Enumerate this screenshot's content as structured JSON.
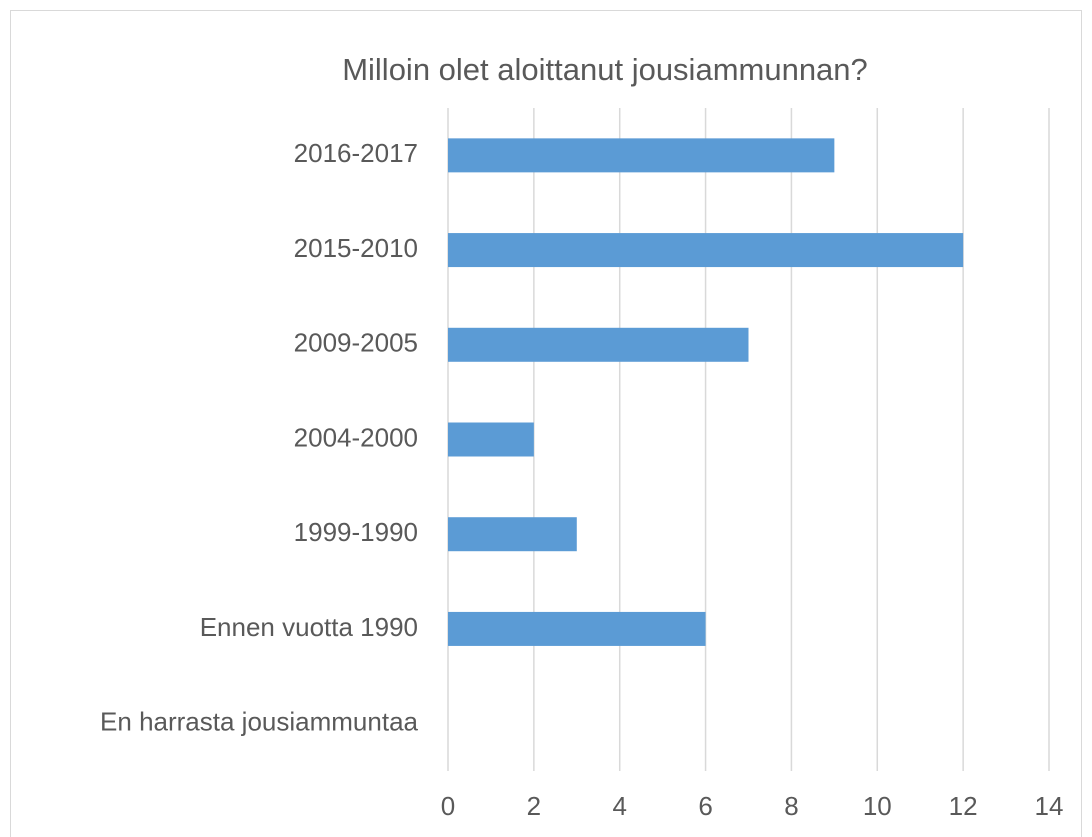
{
  "chart_data": {
    "type": "bar",
    "orientation": "horizontal",
    "title": "Milloin olet aloittanut jousiammunnan?",
    "categories": [
      "2016-2017",
      "2015-2010",
      "2009-2005",
      "2004-2000",
      "1999-1990",
      "Ennen vuotta 1990",
      "En harrasta jousiammuntaa"
    ],
    "values": [
      9,
      12,
      7,
      2,
      3,
      6,
      0
    ],
    "color": "#5b9bd5",
    "xlim": [
      0,
      14
    ],
    "xticks": [
      0,
      2,
      4,
      6,
      8,
      10,
      12,
      14
    ],
    "grid": true
  }
}
